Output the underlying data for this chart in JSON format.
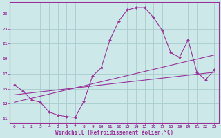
{
  "xlabel": "Windchill (Refroidissement éolien,°C)",
  "background_color": "#cce8e8",
  "grid_color": "#aacccc",
  "line_color": "#993399",
  "spine_color": "#993399",
  "x_ticks": [
    0,
    1,
    2,
    3,
    4,
    5,
    6,
    7,
    8,
    9,
    10,
    11,
    12,
    13,
    14,
    15,
    16,
    17,
    18,
    19,
    20,
    21,
    22,
    23
  ],
  "y_ticks": [
    11,
    13,
    15,
    17,
    19,
    21,
    23,
    25
  ],
  "xlim": [
    -0.5,
    23.5
  ],
  "ylim": [
    10.5,
    26.5
  ],
  "tick_fontsize": 4.5,
  "xlabel_fontsize": 5.5,
  "main_line": {
    "x": [
      0,
      1,
      2,
      3,
      4,
      5,
      6,
      7,
      8,
      9,
      10,
      11,
      12,
      13,
      14,
      15,
      16,
      17,
      18,
      19,
      20,
      21,
      22,
      23
    ],
    "y": [
      15.5,
      14.7,
      13.5,
      13.2,
      11.9,
      11.5,
      11.3,
      11.2,
      13.3,
      16.7,
      17.8,
      21.5,
      24.0,
      25.5,
      25.8,
      25.8,
      24.5,
      22.8,
      19.8,
      19.2,
      21.5,
      17.2,
      16.2,
      17.5
    ]
  },
  "straight_lines": [
    {
      "x": [
        0,
        23
      ],
      "y": [
        14.2,
        17.2
      ]
    },
    {
      "x": [
        0,
        23
      ],
      "y": [
        13.2,
        19.5
      ]
    }
  ]
}
